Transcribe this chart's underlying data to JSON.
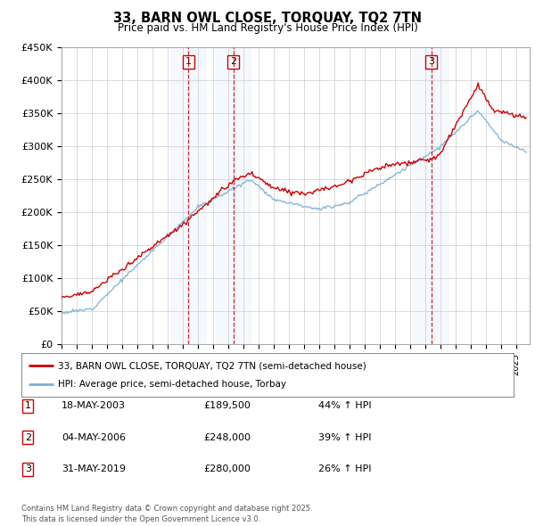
{
  "title": "33, BARN OWL CLOSE, TORQUAY, TQ2 7TN",
  "subtitle": "Price paid vs. HM Land Registry's House Price Index (HPI)",
  "ylim": [
    0,
    450000
  ],
  "yticks": [
    0,
    50000,
    100000,
    150000,
    200000,
    250000,
    300000,
    350000,
    400000,
    450000
  ],
  "ytick_labels": [
    "£0",
    "£50K",
    "£100K",
    "£150K",
    "£200K",
    "£250K",
    "£300K",
    "£350K",
    "£400K",
    "£450K"
  ],
  "xlim_start": 1995.0,
  "xlim_end": 2025.9,
  "legend_line1": "33, BARN OWL CLOSE, TORQUAY, TQ2 7TN (semi-detached house)",
  "legend_line2": "HPI: Average price, semi-detached house, Torbay",
  "transactions": [
    {
      "num": 1,
      "date": "18-MAY-2003",
      "price": "£189,500",
      "change": "44% ↑ HPI",
      "year": 2003.38
    },
    {
      "num": 2,
      "date": "04-MAY-2006",
      "price": "£248,000",
      "change": "39% ↑ HPI",
      "year": 2006.34
    },
    {
      "num": 3,
      "date": "31-MAY-2019",
      "price": "£280,000",
      "change": "26% ↑ HPI",
      "year": 2019.41
    }
  ],
  "footer": "Contains HM Land Registry data © Crown copyright and database right 2025.\nThis data is licensed under the Open Government Licence v3.0.",
  "red_color": "#cc0000",
  "blue_color": "#7ab0d4",
  "background_color": "#ffffff",
  "grid_color": "#cccccc",
  "shaded_color": "#ccddef"
}
